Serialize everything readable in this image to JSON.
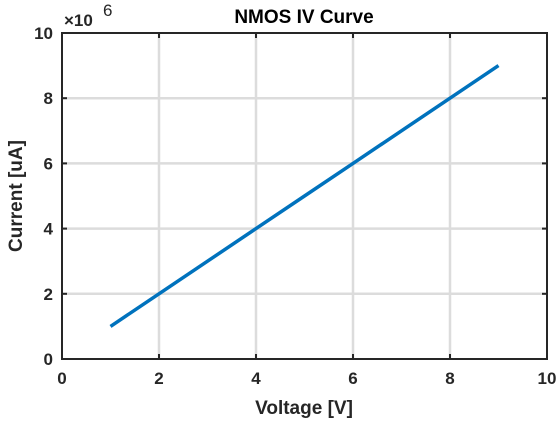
{
  "chart_data": {
    "type": "line",
    "title": "NMOS IV Curve",
    "xlabel": "Voltage [V]",
    "ylabel": "Current [uA]",
    "xlim": [
      0,
      10
    ],
    "ylim": [
      0,
      10000000
    ],
    "x_ticks": [
      "0",
      "2",
      "4",
      "6",
      "8",
      "10"
    ],
    "y_ticks": [
      "0",
      "2",
      "4",
      "6",
      "8",
      "10"
    ],
    "y_multiplier": {
      "base": "×10",
      "exponent": "6"
    },
    "grid": true,
    "series": [
      {
        "color": "#0072BD",
        "x": [
          1,
          2,
          3,
          4,
          5,
          6,
          7,
          8,
          9
        ],
        "y": [
          1000000,
          2000000,
          3000000,
          4000000,
          5000000,
          6000000,
          7000000,
          8000000,
          9000000
        ]
      }
    ]
  }
}
